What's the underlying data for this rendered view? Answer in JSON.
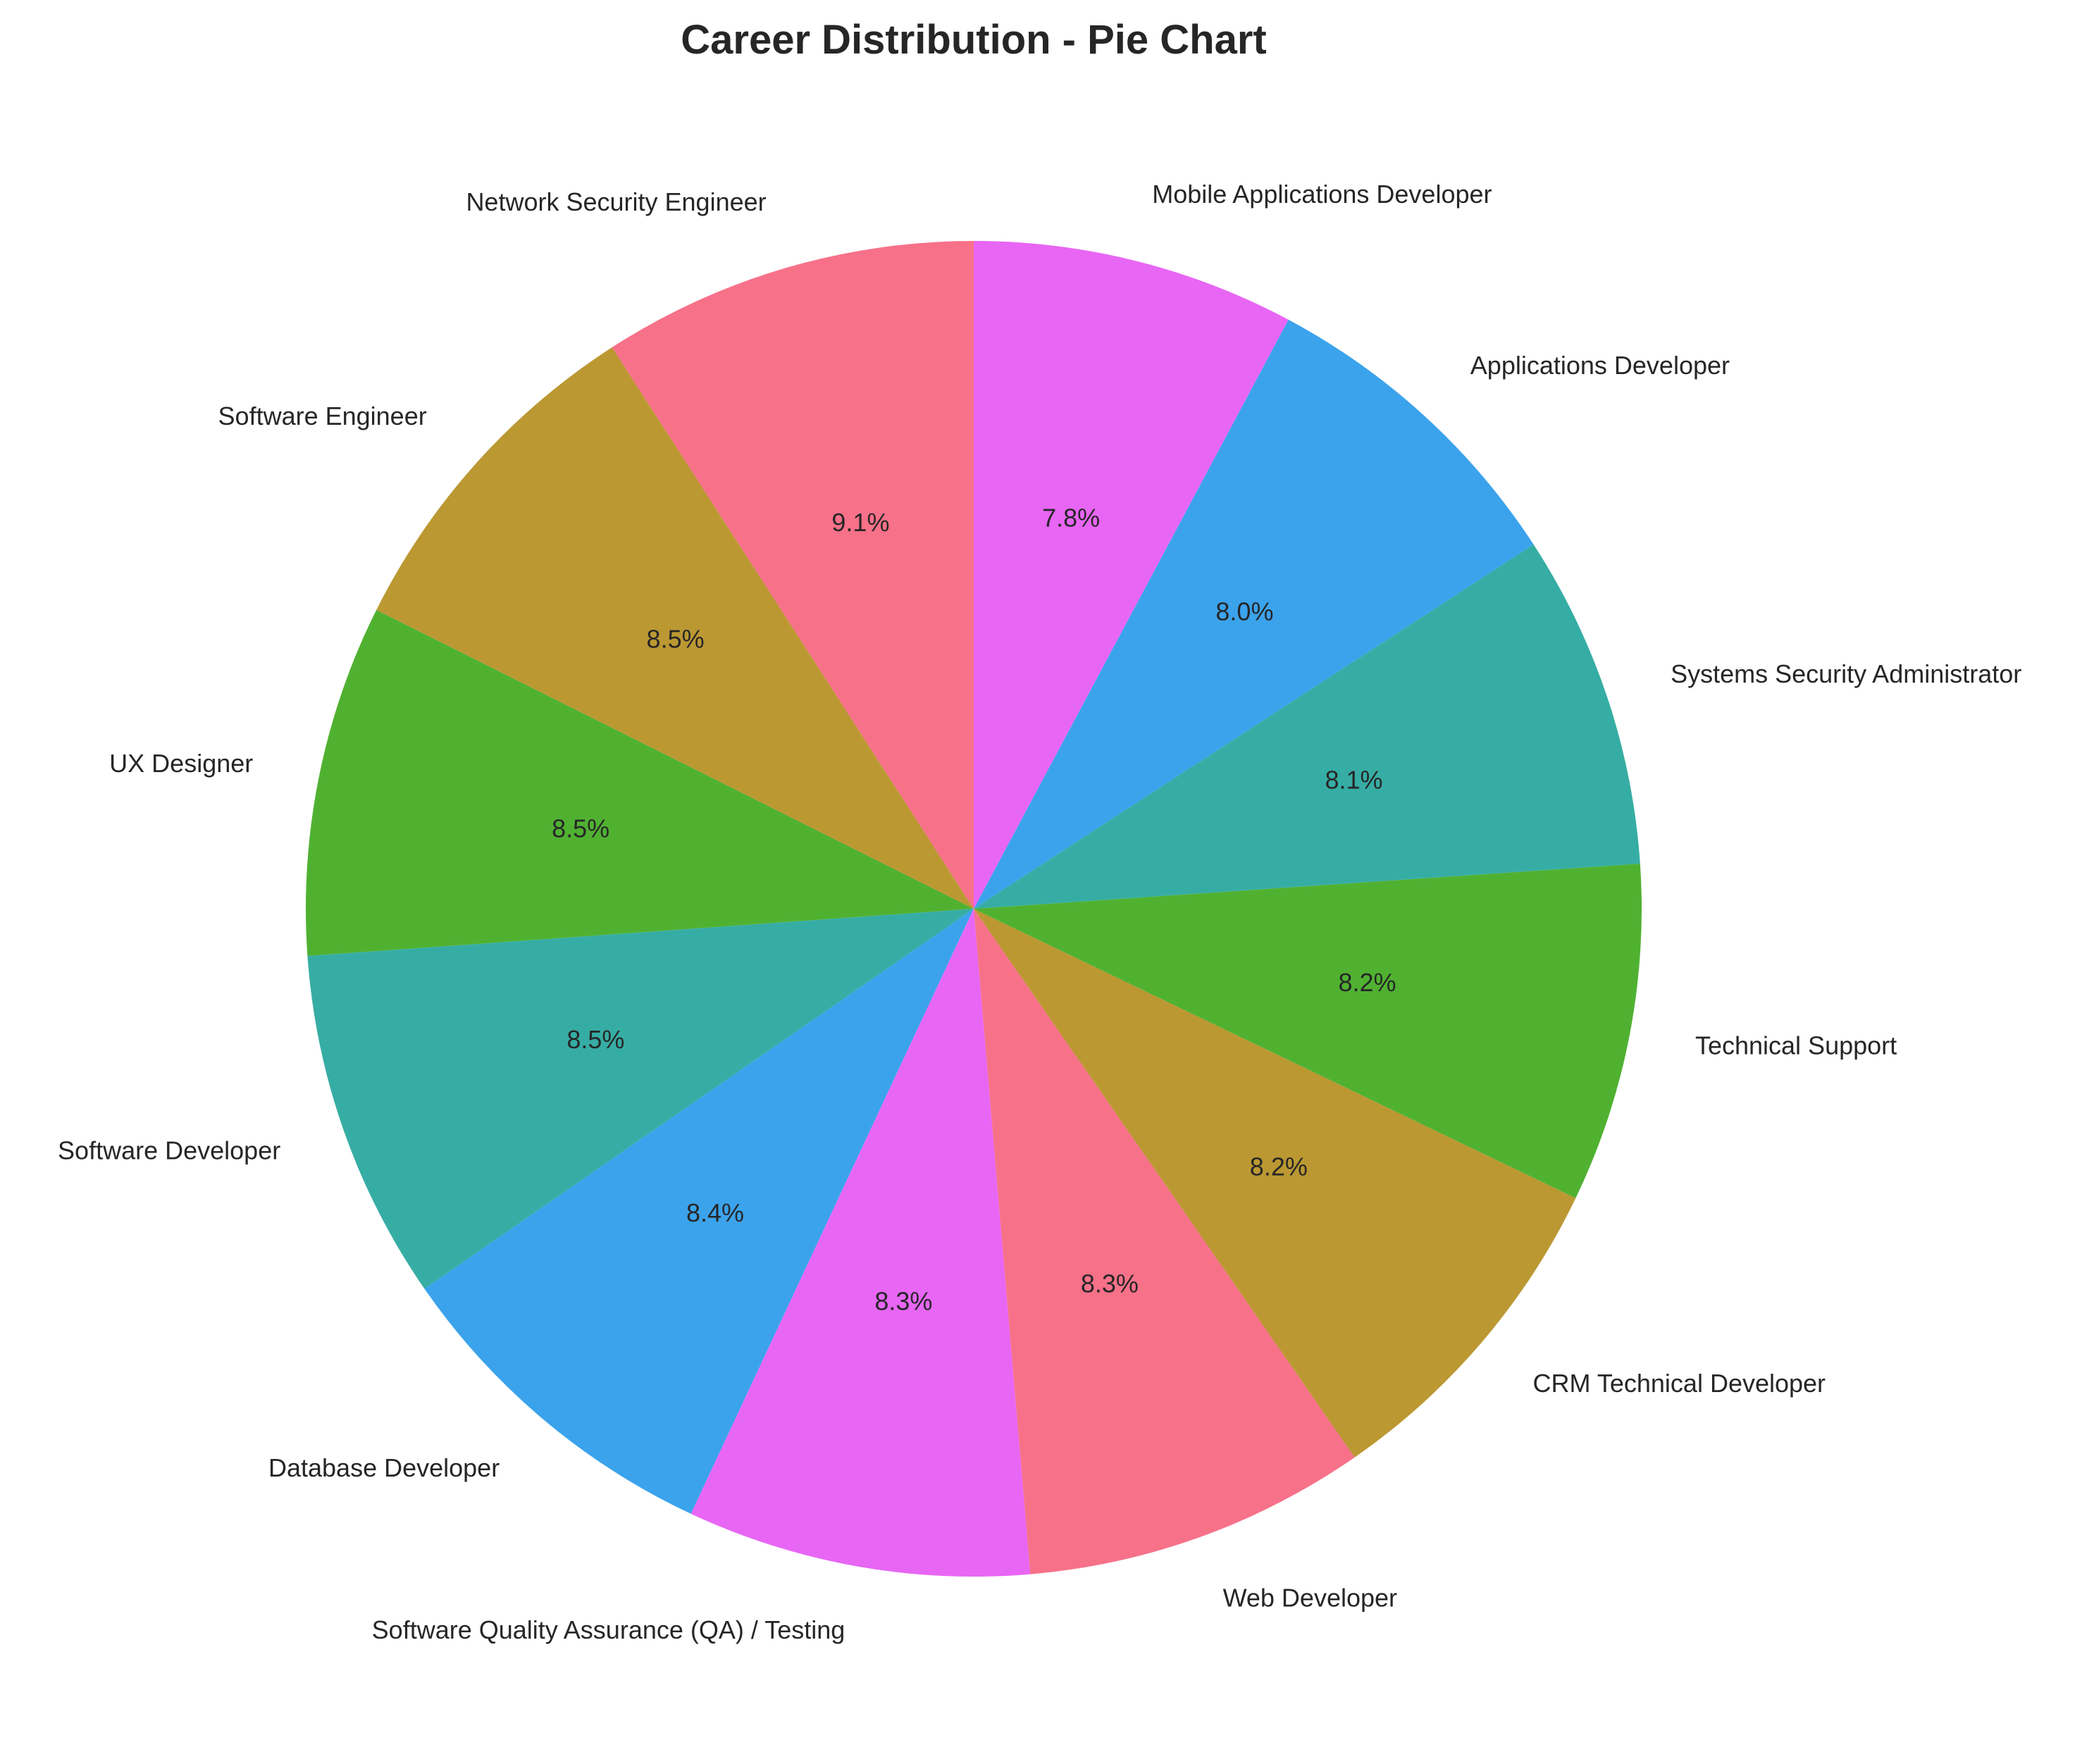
{
  "chart_data": {
    "type": "pie",
    "title": "Career Distribution - Pie Chart",
    "start_angle_deg": 90,
    "direction": "counterclockwise",
    "slices": [
      {
        "label": "Network Security Engineer",
        "value": 9.1,
        "pct_label": "9.1%",
        "color": "#f77189"
      },
      {
        "label": "Software Engineer",
        "value": 8.5,
        "pct_label": "8.5%",
        "color": "#bb9832"
      },
      {
        "label": "UX Designer",
        "value": 8.5,
        "pct_label": "8.5%",
        "color": "#50b131"
      },
      {
        "label": "Software Developer",
        "value": 8.5,
        "pct_label": "8.5%",
        "color": "#36ada4"
      },
      {
        "label": "Database Developer",
        "value": 8.4,
        "pct_label": "8.4%",
        "color": "#3ba3ec"
      },
      {
        "label": "Software Quality Assurance (QA) / Testing",
        "value": 8.3,
        "pct_label": "8.3%",
        "color": "#e866f4"
      },
      {
        "label": "Web Developer",
        "value": 8.3,
        "pct_label": "8.3%",
        "color": "#f77189"
      },
      {
        "label": "CRM Technical Developer",
        "value": 8.2,
        "pct_label": "8.2%",
        "color": "#bb9832"
      },
      {
        "label": "Technical Support",
        "value": 8.2,
        "pct_label": "8.2%",
        "color": "#50b131"
      },
      {
        "label": "Systems Security Administrator",
        "value": 8.1,
        "pct_label": "8.1%",
        "color": "#36ada4"
      },
      {
        "label": "Applications Developer",
        "value": 8.0,
        "pct_label": "8.0%",
        "color": "#3ba3ec"
      },
      {
        "label": "Mobile Applications Developer",
        "value": 7.8,
        "pct_label": "7.8%",
        "color": "#e866f4"
      }
    ]
  }
}
